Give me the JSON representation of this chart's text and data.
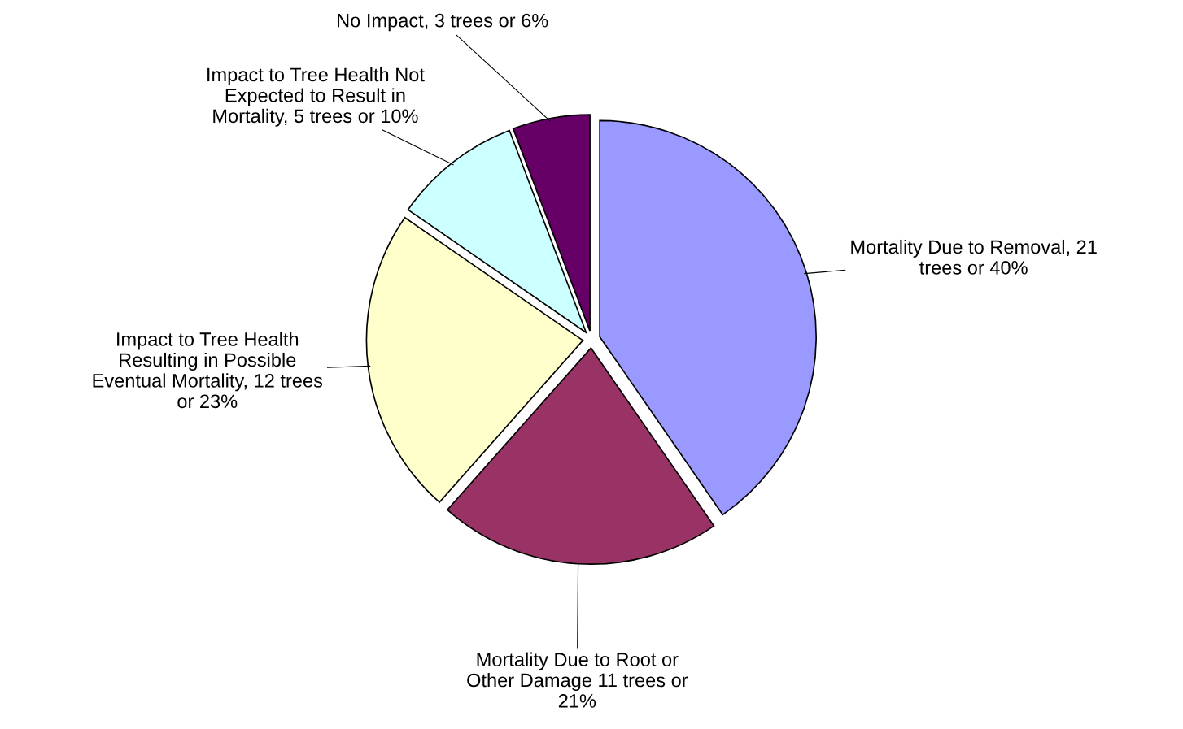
{
  "chart_data": {
    "type": "pie",
    "categories": [
      "Mortality Due to Removal, 21\ntrees or 40%",
      "Mortality Due to Root or\nOther Damage 11 trees or\n21%",
      "Impact to Tree Health\nResulting in Possible\nEventual Mortality, 12 trees\nor 23%",
      "Impact to Tree Health Not\nExpected to Result in\nMortality, 5 trees or 10%",
      "No Impact, 3 trees or 6%"
    ],
    "values": [
      21,
      11,
      12,
      5,
      3
    ],
    "colors": [
      "#9999ff",
      "#993366",
      "#ffffcc",
      "#ccffff",
      "#660066"
    ],
    "legend": false
  }
}
